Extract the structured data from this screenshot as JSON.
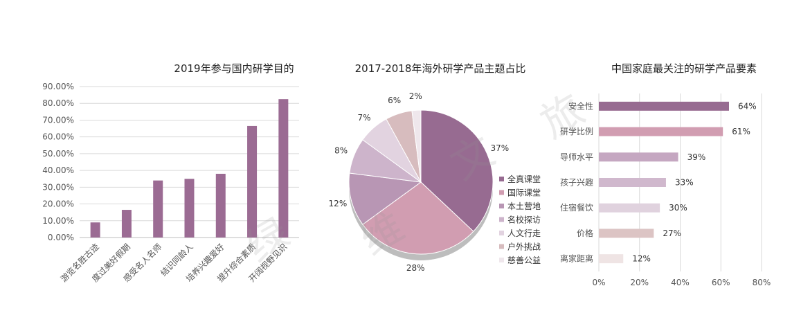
{
  "chart_data": [
    {
      "type": "bar",
      "title": "2019年参与国内研学目的",
      "categories": [
        "游览名胜古迹",
        "度过美好假期",
        "感受名人名师",
        "结识同龄人",
        "培养兴趣爱好",
        "提升综合素质",
        "开阔视野见识"
      ],
      "values": [
        9,
        16.5,
        34,
        35,
        38,
        66.5,
        82.5
      ],
      "ylim": [
        0,
        90
      ],
      "yticks": [
        "0.00%",
        "10.00%",
        "20.00%",
        "30.00%",
        "40.00%",
        "50.00%",
        "60.00%",
        "70.00%",
        "80.00%",
        "90.00%"
      ],
      "grid": true,
      "color": "#9b6b93"
    },
    {
      "type": "pie",
      "title": "2017-2018年海外研学产品主题占比",
      "categories": [
        "全真课堂",
        "国际课堂",
        "本土营地",
        "名校探访",
        "人文行走",
        "户外挑战",
        "慈善公益"
      ],
      "values": [
        37,
        28,
        12,
        8,
        7,
        6,
        2
      ],
      "labels": [
        "37%",
        "28%",
        "12%",
        "8%",
        "7%",
        "6%",
        "2%"
      ],
      "colors": [
        "#976b91",
        "#d19db1",
        "#b896b4",
        "#cdb4cb",
        "#e2d3e0",
        "#d7bcbe",
        "#efe7ec"
      ],
      "legend": "right"
    },
    {
      "type": "bar",
      "orientation": "horizontal",
      "title": "中国家庭最关注的研学产品要素",
      "categories": [
        "安全性",
        "研学比例",
        "导师水平",
        "孩子兴趣",
        "住宿餐饮",
        "价格",
        "离家距离"
      ],
      "values": [
        64,
        61,
        39,
        33,
        30,
        27,
        12
      ],
      "labels": [
        "64%",
        "61%",
        "39%",
        "33%",
        "30%",
        "27%",
        "12%"
      ],
      "colors": [
        "#976b91",
        "#d19db1",
        "#c5a7c1",
        "#d0b8cd",
        "#e0d2de",
        "#dcc4c4",
        "#efe4e4"
      ],
      "xlim": [
        0,
        80
      ],
      "xticks": [
        "0%",
        "20%",
        "40%",
        "60%",
        "80%"
      ],
      "grid": true
    }
  ],
  "watermark": [
    "旅",
    "文",
    "绿",
    "维"
  ]
}
